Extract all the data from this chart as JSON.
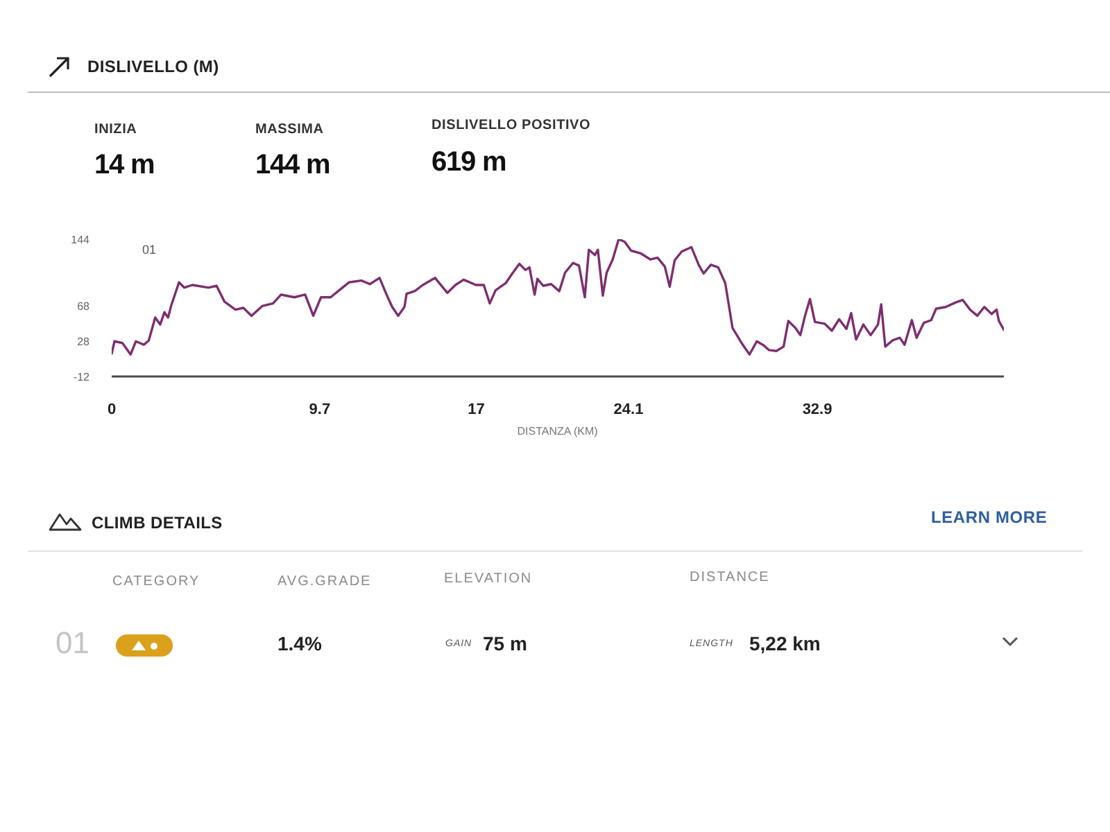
{
  "chart_data": {
    "type": "line",
    "title": "DISLIVELLO (M)",
    "xlabel": "DISTANZA (KM)",
    "color": "#7d2e70",
    "xlim": [
      0,
      41.6
    ],
    "ylim": [
      -12,
      144
    ],
    "xticks": [
      0,
      9.7,
      17,
      24.1,
      32.9
    ],
    "yticks": [
      -12,
      28,
      68,
      144
    ],
    "x": [
      0,
      0.13,
      0.5,
      0.88,
      1.13,
      1.5,
      1.73,
      2.03,
      2.26,
      2.46,
      2.63,
      2.78,
      3.14,
      3.38,
      3.76,
      4.51,
      4.89,
      5.26,
      5.77,
      6.14,
      6.52,
      7.02,
      7.52,
      7.9,
      8.52,
      9.02,
      9.4,
      9.76,
      10.21,
      10.71,
      11.07,
      11.64,
      12.04,
      12.49,
      12.8,
      13.08,
      13.36,
      13.65,
      13.75,
      14.13,
      14.51,
      15.08,
      15.65,
      16.03,
      16.41,
      16.98,
      17.35,
      17.63,
      17.9,
      18.37,
      18.65,
      19.01,
      19.29,
      19.48,
      19.72,
      19.85,
      20.12,
      20.49,
      20.87,
      21.14,
      21.51,
      21.79,
      22.06,
      22.25,
      22.53,
      22.67,
      22.9,
      23.08,
      23.36,
      23.64,
      23.92,
      24.22,
      24.66,
      25.12,
      25.45,
      25.79,
      26.02,
      26.25,
      26.58,
      27.03,
      27.37,
      27.6,
      27.94,
      28.28,
      28.61,
      28.95,
      29.4,
      29.74,
      30.08,
      30.42,
      30.65,
      30.99,
      31.33,
      31.55,
      31.89,
      32.11,
      32.34,
      32.56,
      32.79,
      33.24,
      33.58,
      33.92,
      34.26,
      34.48,
      34.71,
      35.05,
      35.39,
      35.73,
      35.88,
      36.07,
      36.41,
      36.75,
      36.97,
      37.31,
      37.53,
      37.87,
      38.21,
      38.44,
      38.89,
      39.34,
      39.68,
      40.02,
      40.36,
      40.69,
      41.03,
      41.26,
      41.37,
      41.6
    ],
    "values": [
      14,
      28,
      26,
      13,
      28,
      24,
      29,
      55,
      47,
      61,
      55,
      69,
      95,
      89,
      92,
      89,
      91,
      73,
      64,
      66,
      57,
      68,
      71,
      81,
      78,
      81,
      57,
      78,
      78,
      88,
      95,
      97,
      93,
      100,
      82,
      67,
      57,
      67,
      82,
      85,
      92,
      100,
      83,
      92,
      98,
      92,
      92,
      71,
      86,
      94,
      104,
      116,
      109,
      112,
      81,
      99,
      91,
      93,
      85,
      106,
      117,
      114,
      78,
      132,
      126,
      132,
      80,
      106,
      121,
      144,
      141,
      131,
      128,
      121,
      123,
      113,
      90,
      120,
      130,
      135,
      115,
      105,
      115,
      112,
      94,
      43,
      25,
      13,
      28,
      23,
      18,
      17,
      22,
      51,
      43,
      35,
      58,
      76,
      50,
      48,
      40,
      53,
      42,
      60,
      30,
      47,
      35,
      47,
      70,
      22,
      29,
      32,
      24,
      52,
      32,
      49,
      52,
      65,
      67,
      72,
      75,
      64,
      57,
      67,
      59,
      64,
      51,
      41
    ],
    "annotations": [
      "INIZIA",
      "14 m",
      "MASSIMA",
      "144 m",
      "DISLIVELLO POSITIVO",
      "619 m",
      "CLIMB DETAILS",
      "LEARN MORE",
      "CATEGORY",
      "AVG.GRADE",
      "ELEVATION",
      "DISTANCE",
      "01",
      "1.4%",
      "GAIN",
      "75 m",
      "LENGTH",
      "5,22 km",
      "01"
    ]
  }
}
